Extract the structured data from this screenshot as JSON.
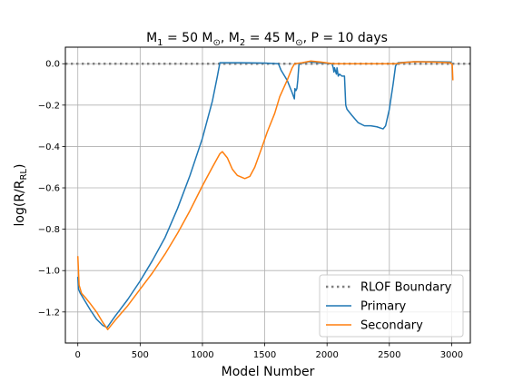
{
  "chart_data": {
    "type": "line",
    "title": {
      "m1_label": "M",
      "m1_sub": "1",
      "m1_value": " = 50 M",
      "sun": "⊙",
      "m2_prefix": ", M",
      "m2_sub": "2",
      "m2_value": " = 45 M",
      "period": ", P = 10 days"
    },
    "xlabel": "Model Number",
    "ylabel": {
      "main": "log(R/R",
      "sub": "RL",
      "close": ")"
    },
    "xlim": [
      -100,
      3150
    ],
    "ylim": [
      -1.35,
      0.08
    ],
    "xticks": [
      0,
      500,
      1000,
      1500,
      2000,
      2500,
      3000
    ],
    "xtick_labels": [
      "0",
      "500",
      "1000",
      "1500",
      "2000",
      "2500",
      "3000"
    ],
    "yticks": [
      0.0,
      -0.2,
      -0.4,
      -0.6,
      -0.8,
      -1.0,
      -1.2
    ],
    "ytick_labels": [
      "0.0",
      "−0.2",
      "−0.4",
      "−0.6",
      "−0.8",
      "−1.0",
      "−1.2"
    ],
    "grid": true,
    "legend_position": "lower-right",
    "reference_line": {
      "name": "RLOF Boundary",
      "y": 0.0,
      "color": "#808080",
      "style": "dotted"
    },
    "series": [
      {
        "name": "Primary",
        "color": "#1f77b4",
        "points": [
          [
            0,
            -1.03
          ],
          [
            5,
            -1.09
          ],
          [
            20,
            -1.11
          ],
          [
            60,
            -1.15
          ],
          [
            100,
            -1.19
          ],
          [
            150,
            -1.235
          ],
          [
            200,
            -1.265
          ],
          [
            235,
            -1.275
          ],
          [
            300,
            -1.22
          ],
          [
            400,
            -1.14
          ],
          [
            500,
            -1.05
          ],
          [
            600,
            -0.95
          ],
          [
            700,
            -0.84
          ],
          [
            800,
            -0.7
          ],
          [
            900,
            -0.54
          ],
          [
            1000,
            -0.36
          ],
          [
            1080,
            -0.18
          ],
          [
            1120,
            -0.06
          ],
          [
            1140,
            0.005
          ],
          [
            1300,
            0.005
          ],
          [
            1500,
            0.003
          ],
          [
            1610,
            0.0
          ],
          [
            1630,
            -0.03
          ],
          [
            1680,
            -0.08
          ],
          [
            1720,
            -0.14
          ],
          [
            1738,
            -0.17
          ],
          [
            1742,
            -0.12
          ],
          [
            1750,
            -0.13
          ],
          [
            1758,
            -0.12
          ],
          [
            1765,
            -0.08
          ],
          [
            1775,
            0.0
          ],
          [
            1850,
            0.01
          ],
          [
            1950,
            0.005
          ],
          [
            2040,
            0.0
          ],
          [
            2050,
            -0.02
          ],
          [
            2055,
            -0.04
          ],
          [
            2060,
            -0.02
          ],
          [
            2070,
            -0.04
          ],
          [
            2075,
            -0.05
          ],
          [
            2080,
            -0.02
          ],
          [
            2090,
            -0.06
          ],
          [
            2100,
            -0.05
          ],
          [
            2120,
            -0.06
          ],
          [
            2140,
            -0.06
          ],
          [
            2150,
            -0.2
          ],
          [
            2160,
            -0.22
          ],
          [
            2200,
            -0.25
          ],
          [
            2250,
            -0.285
          ],
          [
            2300,
            -0.3
          ],
          [
            2350,
            -0.3
          ],
          [
            2400,
            -0.305
          ],
          [
            2450,
            -0.315
          ],
          [
            2470,
            -0.3
          ],
          [
            2500,
            -0.22
          ],
          [
            2530,
            -0.1
          ],
          [
            2550,
            -0.01
          ],
          [
            2570,
            0.005
          ],
          [
            2700,
            0.01
          ],
          [
            2850,
            0.01
          ],
          [
            3000,
            0.008
          ]
        ]
      },
      {
        "name": "Secondary",
        "color": "#ff7f0e",
        "points": [
          [
            0,
            -0.93
          ],
          [
            5,
            -1.0
          ],
          [
            10,
            -1.07
          ],
          [
            30,
            -1.11
          ],
          [
            60,
            -1.13
          ],
          [
            100,
            -1.16
          ],
          [
            150,
            -1.2
          ],
          [
            200,
            -1.25
          ],
          [
            240,
            -1.285
          ],
          [
            300,
            -1.24
          ],
          [
            400,
            -1.17
          ],
          [
            500,
            -1.09
          ],
          [
            600,
            -1.01
          ],
          [
            700,
            -0.92
          ],
          [
            800,
            -0.82
          ],
          [
            900,
            -0.71
          ],
          [
            1000,
            -0.59
          ],
          [
            1080,
            -0.5
          ],
          [
            1140,
            -0.435
          ],
          [
            1160,
            -0.425
          ],
          [
            1200,
            -0.455
          ],
          [
            1240,
            -0.51
          ],
          [
            1280,
            -0.54
          ],
          [
            1340,
            -0.555
          ],
          [
            1380,
            -0.545
          ],
          [
            1420,
            -0.5
          ],
          [
            1480,
            -0.4
          ],
          [
            1520,
            -0.33
          ],
          [
            1580,
            -0.24
          ],
          [
            1620,
            -0.16
          ],
          [
            1680,
            -0.08
          ],
          [
            1720,
            -0.02
          ],
          [
            1740,
            0.0
          ],
          [
            1800,
            0.005
          ],
          [
            1870,
            0.013
          ],
          [
            1950,
            0.008
          ],
          [
            2050,
            0.0
          ],
          [
            2200,
            0.0
          ],
          [
            2400,
            0.0
          ],
          [
            2550,
            0.0
          ],
          [
            2600,
            0.005
          ],
          [
            2700,
            0.01
          ],
          [
            2850,
            0.008
          ],
          [
            2990,
            0.005
          ],
          [
            3005,
            -0.005
          ],
          [
            3010,
            -0.08
          ]
        ]
      }
    ]
  }
}
